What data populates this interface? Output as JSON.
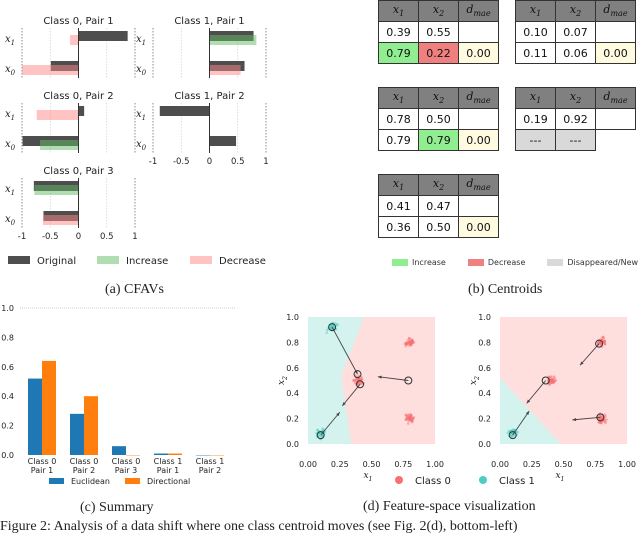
{
  "panels": {
    "a_caption": "(a) CFAVs",
    "b_caption": "(b) Centroids",
    "c_caption": "(c) Summary",
    "d_caption": "(d) Feature-space visualization"
  },
  "figure_caption": "Figure 2: Analysis of a data shift where one class centroid moves (see Fig. 2(d), bottom-left)",
  "colors": {
    "original": "#444444",
    "increase": "#90d090",
    "decrease": "#ffaaaa",
    "euclidean": "#1f77b4",
    "directional": "#ff7f0e",
    "class0": "#f87070",
    "class1": "#4ecdc4",
    "region0": "#ffdede",
    "region1": "#d4f3ef"
  },
  "chart_data": [
    {
      "type": "bar",
      "orientation": "horizontal",
      "name": "cfavs",
      "xlim": [
        -1,
        1
      ],
      "xticks": [
        "-1",
        "-0.5",
        "0",
        "0.5",
        "1"
      ],
      "features": [
        "x_1",
        "x_0"
      ],
      "legend": [
        "Original",
        "Increase",
        "Decrease"
      ],
      "subplots": [
        {
          "title": "Class 0, Pair 1",
          "original": {
            "x_1": 0.87,
            "x_0": -0.49
          },
          "change": {
            "x_1": {
              "kind": "Decrease",
              "value": -0.15
            },
            "x_0": {
              "kind": "Decrease",
              "value": -1.0
            }
          }
        },
        {
          "title": "Class 1, Pair 1",
          "original": {
            "x_1": 0.78,
            "x_0": 0.62
          },
          "change": {
            "x_1": {
              "kind": "Increase",
              "value": 0.83
            },
            "x_0": {
              "kind": "Decrease",
              "value": 0.55
            }
          }
        },
        {
          "title": "Class 0, Pair 2",
          "original": {
            "x_1": 0.1,
            "x_0": -0.99
          },
          "change": {
            "x_1": {
              "kind": "Decrease",
              "value": -0.74
            },
            "x_0": {
              "kind": "Increase",
              "value": -0.68
            }
          }
        },
        {
          "title": "Class 1, Pair 2",
          "original": {
            "x_1": -0.88,
            "x_0": 0.47
          },
          "change": {}
        },
        {
          "title": "Class 0, Pair 3",
          "original": {
            "x_1": -0.79,
            "x_0": -0.62
          },
          "change": {
            "x_1": {
              "kind": "Increase",
              "value": -0.78
            },
            "x_0": {
              "kind": "Decrease",
              "value": -0.63
            }
          }
        }
      ]
    },
    {
      "type": "bar",
      "name": "summary",
      "categories": [
        "Class 0\nPair 1",
        "Class 0\nPair 2",
        "Class 0\nPair 3",
        "Class 1\nPair 1",
        "Class 1\nPair 2"
      ],
      "series": [
        {
          "name": "Euclidean",
          "values": [
            0.52,
            0.28,
            0.06,
            0.01,
            0.0
          ]
        },
        {
          "name": "Directional",
          "values": [
            0.64,
            0.4,
            0.0,
            0.01,
            0.0
          ]
        }
      ],
      "ylim": [
        0,
        1.0
      ],
      "yticks": [
        "0.0",
        "0.2",
        "0.4",
        "0.6",
        "0.8",
        "1.0"
      ],
      "legend_placement": "bottom"
    },
    {
      "type": "scatter",
      "name": "feature-space",
      "xlabel": "x_1",
      "ylabel": "x_2",
      "xlim": [
        0,
        1
      ],
      "ylim": [
        0,
        1
      ],
      "xticks": [
        "0.00",
        "0.25",
        "0.50",
        "0.75",
        "1.00"
      ],
      "yticks": [
        "0.0",
        "0.2",
        "0.4",
        "0.6",
        "0.8",
        "1.0"
      ],
      "legend": [
        "Class 0",
        "Class 1"
      ],
      "plots": [
        {
          "clusters": [
            {
              "class": 1,
              "center": [
                0.19,
                0.92
              ]
            },
            {
              "class": 1,
              "center": [
                0.1,
                0.08
              ]
            },
            {
              "class": 0,
              "center": [
                0.8,
                0.8
              ]
            },
            {
              "class": 0,
              "center": [
                0.4,
                0.5
              ]
            },
            {
              "class": 0,
              "center": [
                0.8,
                0.2
              ]
            }
          ],
          "class1_region": [
            [
              0,
              1
            ],
            [
              0.44,
              1
            ],
            [
              0.26,
              0.53
            ],
            [
              0.34,
              0
            ],
            [
              0,
              0
            ]
          ],
          "arrows": [
            {
              "from": [
                0.19,
                0.92
              ],
              "to": [
                0.39,
                0.55
              ]
            },
            {
              "from": [
                0.79,
                0.5
              ],
              "to": [
                0.55,
                0.53
              ]
            },
            {
              "from": [
                0.41,
                0.47
              ],
              "to": [
                0.27,
                0.3
              ]
            },
            {
              "from": [
                0.1,
                0.07
              ],
              "to": [
                0.25,
                0.25
              ]
            }
          ],
          "centroids": [
            [
              0.19,
              0.92
            ],
            [
              0.39,
              0.55
            ],
            [
              0.79,
              0.5
            ],
            [
              0.41,
              0.47
            ],
            [
              0.1,
              0.07
            ]
          ]
        },
        {
          "clusters": [
            {
              "class": 1,
              "center": [
                0.1,
                0.09
              ]
            },
            {
              "class": 0,
              "center": [
                0.8,
                0.8
              ]
            },
            {
              "class": 0,
              "center": [
                0.4,
                0.5
              ]
            },
            {
              "class": 0,
              "center": [
                0.8,
                0.2
              ]
            }
          ],
          "class1_region": [
            [
              0,
              0.52
            ],
            [
              0.48,
              0
            ],
            [
              0,
              0
            ]
          ],
          "arrows": [
            {
              "from": [
                0.78,
                0.79
              ],
              "to": [
                0.63,
                0.62
              ]
            },
            {
              "from": [
                0.36,
                0.5
              ],
              "to": [
                0.21,
                0.32
              ]
            },
            {
              "from": [
                0.1,
                0.07
              ],
              "to": [
                0.23,
                0.26
              ]
            },
            {
              "from": [
                0.79,
                0.21
              ],
              "to": [
                0.57,
                0.19
              ]
            }
          ],
          "centroids": [
            [
              0.78,
              0.79
            ],
            [
              0.36,
              0.5
            ],
            [
              0.1,
              0.07
            ],
            [
              0.79,
              0.21
            ]
          ]
        }
      ]
    }
  ],
  "centroids": {
    "headers": [
      "x1",
      "x2",
      "dmae"
    ],
    "tables": [
      {
        "rows": [
          [
            "0.39",
            "0.55",
            ""
          ],
          [
            "0.79",
            "0.22",
            "0.00"
          ]
        ],
        "styles": [
          [
            "",
            "",
            ""
          ],
          [
            "inc",
            "dec",
            "dist"
          ]
        ]
      },
      {
        "rows": [
          [
            "0.10",
            "0.07",
            ""
          ],
          [
            "0.11",
            "0.06",
            "0.00"
          ]
        ],
        "styles": [
          [
            "",
            "",
            ""
          ],
          [
            "",
            "",
            "dist"
          ]
        ]
      },
      {
        "rows": [
          [
            "0.78",
            "0.50",
            ""
          ],
          [
            "0.79",
            "0.79",
            "0.00"
          ]
        ],
        "styles": [
          [
            "",
            "",
            ""
          ],
          [
            "",
            "inc",
            "dist"
          ]
        ]
      },
      {
        "rows": [
          [
            "0.19",
            "0.92",
            ""
          ],
          [
            "---",
            "---",
            ""
          ]
        ],
        "styles": [
          [
            "",
            "",
            ""
          ],
          [
            "gone",
            "gone",
            "blank"
          ]
        ]
      },
      {
        "rows": [
          [
            "0.41",
            "0.47",
            ""
          ],
          [
            "0.36",
            "0.50",
            "0.00"
          ]
        ],
        "styles": [
          [
            "",
            "",
            ""
          ],
          [
            "",
            "",
            "dist"
          ]
        ]
      }
    ],
    "legend": [
      "Increase",
      "Decrease",
      "Disappeared/New"
    ]
  }
}
